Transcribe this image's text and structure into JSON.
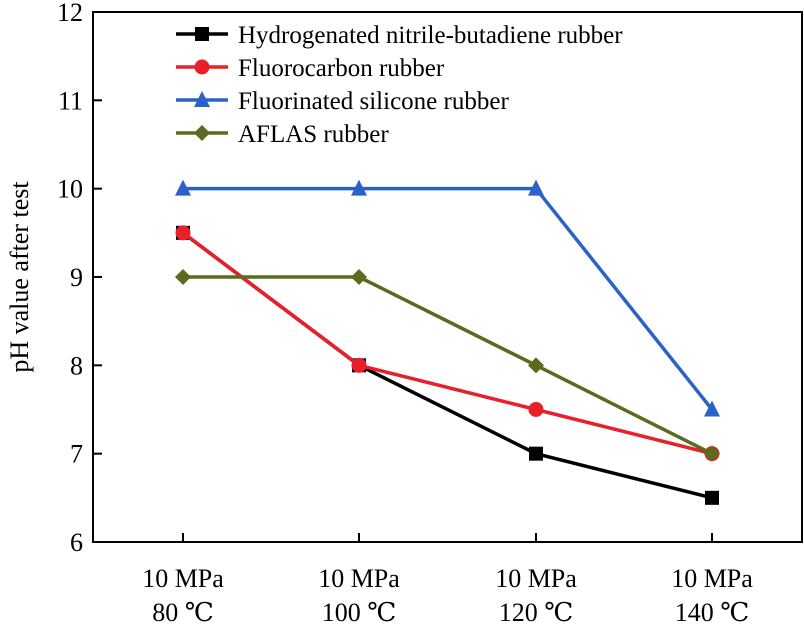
{
  "chart_data": {
    "type": "line",
    "title": "",
    "xlabel": "",
    "ylabel": "pH value after test",
    "ylim": [
      6,
      12
    ],
    "yticks": [
      6,
      7,
      8,
      9,
      10,
      11,
      12
    ],
    "grid": false,
    "legend_position": "top-right",
    "categories": [
      [
        "10 MPa",
        "80 ℃"
      ],
      [
        "10 MPa",
        "100 ℃"
      ],
      [
        "10 MPa",
        "120 ℃"
      ],
      [
        "10 MPa",
        "140 ℃"
      ]
    ],
    "series": [
      {
        "name": "Hydrogenated nitrile-butadiene rubber",
        "values": [
          9.5,
          8.0,
          7.0,
          6.5
        ],
        "color": "#000000",
        "marker": "square"
      },
      {
        "name": "Fluorocarbon rubber",
        "values": [
          9.5,
          8.0,
          7.5,
          7.0
        ],
        "color": "#e8202a",
        "marker": "circle"
      },
      {
        "name": "Fluorinated silicone rubber",
        "values": [
          10.0,
          10.0,
          10.0,
          7.5
        ],
        "color": "#2a62c9",
        "marker": "triangle"
      },
      {
        "name": "AFLAS rubber",
        "values": [
          9.0,
          9.0,
          8.0,
          7.0
        ],
        "color": "#5a6b1e",
        "marker": "diamond"
      }
    ]
  }
}
